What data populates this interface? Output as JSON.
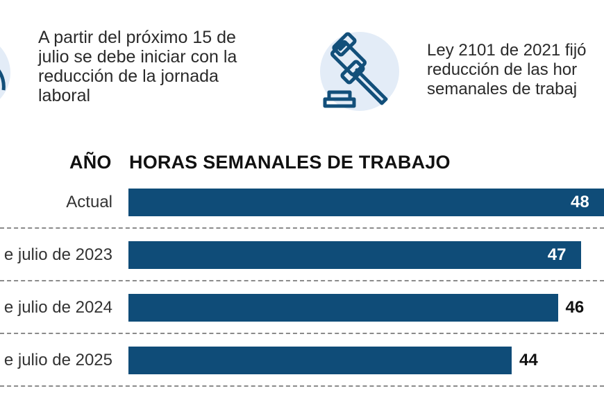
{
  "intro_left": {
    "lines": [
      "A partir del próximo 15 de",
      "julio se debe iniciar con la",
      "reducción de la jornada",
      "laboral"
    ],
    "icon": "clock-icon"
  },
  "intro_right": {
    "lines": [
      "Ley 2101 de 2021 fijó",
      "reducción de las hor",
      "semanales de trabaj"
    ],
    "icon": "gavel-icon"
  },
  "colors": {
    "bar": "#0f4c78",
    "icon_bg": "#e3ecf7",
    "icon_stroke": "#124f7a"
  },
  "chart_data": {
    "type": "bar",
    "orientation": "horizontal",
    "category_header": "AÑO",
    "value_header": "HORAS SEMANALES DE TRABAJO",
    "categories": [
      "Actual",
      "e julio de 2023",
      "e julio de 2024",
      "e julio de 2025"
    ],
    "values": [
      48,
      47,
      46,
      44
    ],
    "grid": false
  }
}
